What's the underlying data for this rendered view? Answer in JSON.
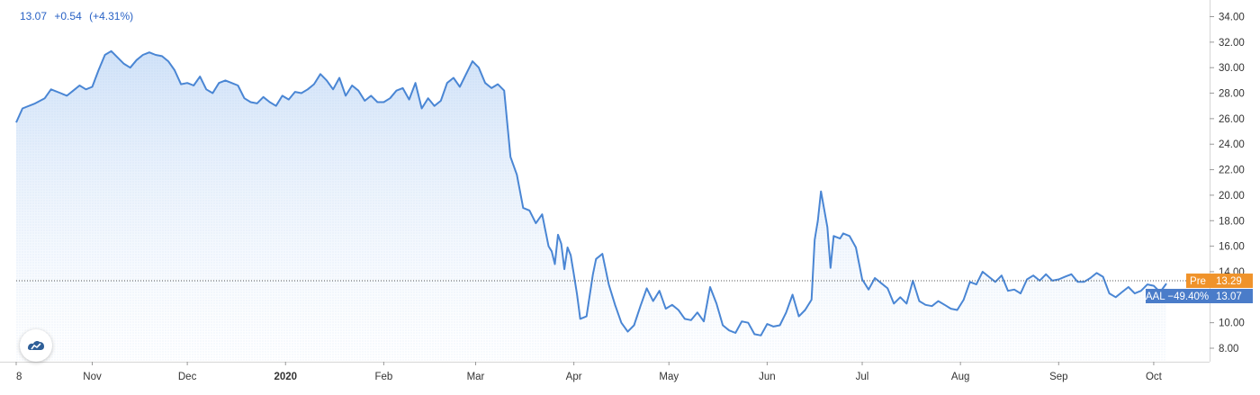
{
  "header": {
    "price": "13.07",
    "change": "+0.54",
    "change_pct": "(+4.31%)"
  },
  "badges": {
    "pre": {
      "label": "Pre",
      "value": "13.29",
      "color": "#f0932b"
    },
    "last": {
      "label": "AAL −49.40%",
      "value": "13.07",
      "color": "#4a7cc9"
    }
  },
  "colors": {
    "line": "#4a86d4",
    "area_top": "#cfe1f8",
    "area_bottom": "#ffffff"
  },
  "logo": {
    "icon": "tradingview-logo-icon"
  },
  "chart_data": {
    "type": "area",
    "title": "",
    "xlabel": "",
    "ylabel": "",
    "ylim": [
      6.5,
      35
    ],
    "y_ticks": [
      8,
      10,
      12,
      14,
      16,
      18,
      20,
      22,
      24,
      26,
      28,
      30,
      32,
      34
    ],
    "y_tick_labels": [
      "8.00",
      "10.00",
      "12.00",
      "14.00",
      "16.00",
      "18.00",
      "20.00",
      "22.00",
      "24.00",
      "26.00",
      "28.00",
      "30.00",
      "32.00",
      "34.00"
    ],
    "x_ticks": [
      {
        "label": "8",
        "date": "2019-10-08",
        "bold": false
      },
      {
        "label": "Nov",
        "date": "2019-11-01",
        "bold": false
      },
      {
        "label": "Dec",
        "date": "2019-12-01",
        "bold": false
      },
      {
        "label": "2020",
        "date": "2020-01-01",
        "bold": true
      },
      {
        "label": "Feb",
        "date": "2020-02-01",
        "bold": false
      },
      {
        "label": "Mar",
        "date": "2020-03-01",
        "bold": false
      },
      {
        "label": "Apr",
        "date": "2020-04-01",
        "bold": false
      },
      {
        "label": "May",
        "date": "2020-05-01",
        "bold": false
      },
      {
        "label": "Jun",
        "date": "2020-06-01",
        "bold": false
      },
      {
        "label": "Jul",
        "date": "2020-07-01",
        "bold": false
      },
      {
        "label": "Aug",
        "date": "2020-08-01",
        "bold": false
      },
      {
        "label": "Sep",
        "date": "2020-09-01",
        "bold": false
      },
      {
        "label": "Oct",
        "date": "2020-10-01",
        "bold": false
      }
    ],
    "price_line": 13.29,
    "series": [
      {
        "points": [
          [
            "2019-10-08",
            25.7
          ],
          [
            "2019-10-10",
            26.8
          ],
          [
            "2019-10-14",
            27.2
          ],
          [
            "2019-10-17",
            27.6
          ],
          [
            "2019-10-19",
            28.3
          ],
          [
            "2019-10-22",
            28.0
          ],
          [
            "2019-10-24",
            27.8
          ],
          [
            "2019-10-26",
            28.2
          ],
          [
            "2019-10-28",
            28.6
          ],
          [
            "2019-10-30",
            28.3
          ],
          [
            "2019-11-01",
            28.5
          ],
          [
            "2019-11-03",
            29.8
          ],
          [
            "2019-11-05",
            31.0
          ],
          [
            "2019-11-07",
            31.3
          ],
          [
            "2019-11-09",
            30.8
          ],
          [
            "2019-11-11",
            30.3
          ],
          [
            "2019-11-13",
            30.0
          ],
          [
            "2019-11-15",
            30.6
          ],
          [
            "2019-11-17",
            31.0
          ],
          [
            "2019-11-19",
            31.2
          ],
          [
            "2019-11-21",
            31.0
          ],
          [
            "2019-11-23",
            30.9
          ],
          [
            "2019-11-25",
            30.5
          ],
          [
            "2019-11-27",
            29.8
          ],
          [
            "2019-11-29",
            28.7
          ],
          [
            "2019-12-01",
            28.8
          ],
          [
            "2019-12-03",
            28.6
          ],
          [
            "2019-12-05",
            29.3
          ],
          [
            "2019-12-07",
            28.3
          ],
          [
            "2019-12-09",
            28.0
          ],
          [
            "2019-12-11",
            28.8
          ],
          [
            "2019-12-13",
            29.0
          ],
          [
            "2019-12-15",
            28.8
          ],
          [
            "2019-12-17",
            28.6
          ],
          [
            "2019-12-19",
            27.6
          ],
          [
            "2019-12-21",
            27.3
          ],
          [
            "2019-12-23",
            27.2
          ],
          [
            "2019-12-25",
            27.7
          ],
          [
            "2019-12-27",
            27.3
          ],
          [
            "2019-12-29",
            27.0
          ],
          [
            "2019-12-31",
            27.8
          ],
          [
            "2020-01-02",
            27.5
          ],
          [
            "2020-01-04",
            28.1
          ],
          [
            "2020-01-06",
            28.0
          ],
          [
            "2020-01-08",
            28.3
          ],
          [
            "2020-01-10",
            28.7
          ],
          [
            "2020-01-12",
            29.5
          ],
          [
            "2020-01-14",
            29.0
          ],
          [
            "2020-01-16",
            28.3
          ],
          [
            "2020-01-18",
            29.2
          ],
          [
            "2020-01-20",
            27.8
          ],
          [
            "2020-01-22",
            28.6
          ],
          [
            "2020-01-24",
            28.2
          ],
          [
            "2020-01-26",
            27.4
          ],
          [
            "2020-01-28",
            27.8
          ],
          [
            "2020-01-30",
            27.3
          ],
          [
            "2020-02-01",
            27.3
          ],
          [
            "2020-02-03",
            27.6
          ],
          [
            "2020-02-05",
            28.2
          ],
          [
            "2020-02-07",
            28.4
          ],
          [
            "2020-02-09",
            27.5
          ],
          [
            "2020-02-11",
            28.8
          ],
          [
            "2020-02-13",
            26.8
          ],
          [
            "2020-02-15",
            27.6
          ],
          [
            "2020-02-17",
            27.0
          ],
          [
            "2020-02-19",
            27.4
          ],
          [
            "2020-02-21",
            28.8
          ],
          [
            "2020-02-23",
            29.2
          ],
          [
            "2020-02-25",
            28.5
          ],
          [
            "2020-02-27",
            29.5
          ],
          [
            "2020-02-29",
            30.5
          ],
          [
            "2020-03-02",
            30.0
          ],
          [
            "2020-03-04",
            28.8
          ],
          [
            "2020-03-06",
            28.4
          ],
          [
            "2020-03-08",
            28.7
          ],
          [
            "2020-03-10",
            28.2
          ],
          [
            "2020-03-12",
            23.0
          ],
          [
            "2020-03-14",
            21.6
          ],
          [
            "2020-03-16",
            19.0
          ],
          [
            "2020-03-18",
            18.8
          ],
          [
            "2020-03-20",
            17.8
          ],
          [
            "2020-03-22",
            18.5
          ],
          [
            "2020-03-24",
            16.0
          ],
          [
            "2020-03-25",
            15.6
          ],
          [
            "2020-03-26",
            14.6
          ],
          [
            "2020-03-27",
            16.9
          ],
          [
            "2020-03-28",
            16.2
          ],
          [
            "2020-03-29",
            14.2
          ],
          [
            "2020-03-30",
            15.9
          ],
          [
            "2020-03-31",
            15.3
          ],
          [
            "2020-04-01",
            13.8
          ],
          [
            "2020-04-02",
            12.2
          ],
          [
            "2020-04-03",
            10.3
          ],
          [
            "2020-04-05",
            10.5
          ],
          [
            "2020-04-07",
            13.8
          ],
          [
            "2020-04-08",
            15.0
          ],
          [
            "2020-04-10",
            15.4
          ],
          [
            "2020-04-12",
            13.0
          ],
          [
            "2020-04-14",
            11.4
          ],
          [
            "2020-04-16",
            10.0
          ],
          [
            "2020-04-18",
            9.3
          ],
          [
            "2020-04-20",
            9.8
          ],
          [
            "2020-04-22",
            11.3
          ],
          [
            "2020-04-24",
            12.7
          ],
          [
            "2020-04-26",
            11.7
          ],
          [
            "2020-04-28",
            12.5
          ],
          [
            "2020-04-30",
            11.1
          ],
          [
            "2020-05-02",
            11.4
          ],
          [
            "2020-05-04",
            11.0
          ],
          [
            "2020-05-06",
            10.3
          ],
          [
            "2020-05-08",
            10.2
          ],
          [
            "2020-05-10",
            10.8
          ],
          [
            "2020-05-12",
            10.1
          ],
          [
            "2020-05-14",
            12.8
          ],
          [
            "2020-05-16",
            11.5
          ],
          [
            "2020-05-18",
            9.8
          ],
          [
            "2020-05-20",
            9.4
          ],
          [
            "2020-05-22",
            9.2
          ],
          [
            "2020-05-24",
            10.1
          ],
          [
            "2020-05-26",
            10.0
          ],
          [
            "2020-05-28",
            9.1
          ],
          [
            "2020-05-30",
            9.0
          ],
          [
            "2020-06-01",
            9.9
          ],
          [
            "2020-06-03",
            9.7
          ],
          [
            "2020-06-05",
            9.8
          ],
          [
            "2020-06-07",
            10.8
          ],
          [
            "2020-06-09",
            12.2
          ],
          [
            "2020-06-11",
            10.5
          ],
          [
            "2020-06-13",
            11.0
          ],
          [
            "2020-06-15",
            11.8
          ],
          [
            "2020-06-16",
            16.5
          ],
          [
            "2020-06-17",
            18.0
          ],
          [
            "2020-06-18",
            20.3
          ],
          [
            "2020-06-20",
            17.5
          ],
          [
            "2020-06-21",
            14.3
          ],
          [
            "2020-06-22",
            16.8
          ],
          [
            "2020-06-24",
            16.6
          ],
          [
            "2020-06-25",
            17.0
          ],
          [
            "2020-06-27",
            16.8
          ],
          [
            "2020-06-29",
            15.9
          ],
          [
            "2020-07-01",
            13.4
          ],
          [
            "2020-07-03",
            12.6
          ],
          [
            "2020-07-05",
            13.5
          ],
          [
            "2020-07-07",
            13.1
          ],
          [
            "2020-07-09",
            12.7
          ],
          [
            "2020-07-11",
            11.5
          ],
          [
            "2020-07-13",
            12.0
          ],
          [
            "2020-07-15",
            11.5
          ],
          [
            "2020-07-17",
            13.3
          ],
          [
            "2020-07-19",
            11.7
          ],
          [
            "2020-07-21",
            11.4
          ],
          [
            "2020-07-23",
            11.3
          ],
          [
            "2020-07-25",
            11.7
          ],
          [
            "2020-07-27",
            11.4
          ],
          [
            "2020-07-29",
            11.1
          ],
          [
            "2020-07-31",
            11.0
          ],
          [
            "2020-08-02",
            11.8
          ],
          [
            "2020-08-04",
            13.2
          ],
          [
            "2020-08-06",
            13.0
          ],
          [
            "2020-08-08",
            14.0
          ],
          [
            "2020-08-10",
            13.6
          ],
          [
            "2020-08-12",
            13.2
          ],
          [
            "2020-08-14",
            13.7
          ],
          [
            "2020-08-16",
            12.5
          ],
          [
            "2020-08-18",
            12.6
          ],
          [
            "2020-08-20",
            12.3
          ],
          [
            "2020-08-22",
            13.4
          ],
          [
            "2020-08-24",
            13.7
          ],
          [
            "2020-08-26",
            13.3
          ],
          [
            "2020-08-28",
            13.8
          ],
          [
            "2020-08-30",
            13.3
          ],
          [
            "2020-09-01",
            13.4
          ],
          [
            "2020-09-03",
            13.6
          ],
          [
            "2020-09-05",
            13.8
          ],
          [
            "2020-09-07",
            13.2
          ],
          [
            "2020-09-09",
            13.2
          ],
          [
            "2020-09-11",
            13.5
          ],
          [
            "2020-09-13",
            13.9
          ],
          [
            "2020-09-15",
            13.6
          ],
          [
            "2020-09-17",
            12.3
          ],
          [
            "2020-09-19",
            12.0
          ],
          [
            "2020-09-21",
            12.4
          ],
          [
            "2020-09-23",
            12.8
          ],
          [
            "2020-09-25",
            12.3
          ],
          [
            "2020-09-27",
            12.5
          ],
          [
            "2020-09-29",
            13.0
          ],
          [
            "2020-10-01",
            12.9
          ],
          [
            "2020-10-03",
            12.4
          ],
          [
            "2020-10-05",
            13.07
          ]
        ]
      }
    ],
    "grid": false,
    "legend": "none"
  }
}
